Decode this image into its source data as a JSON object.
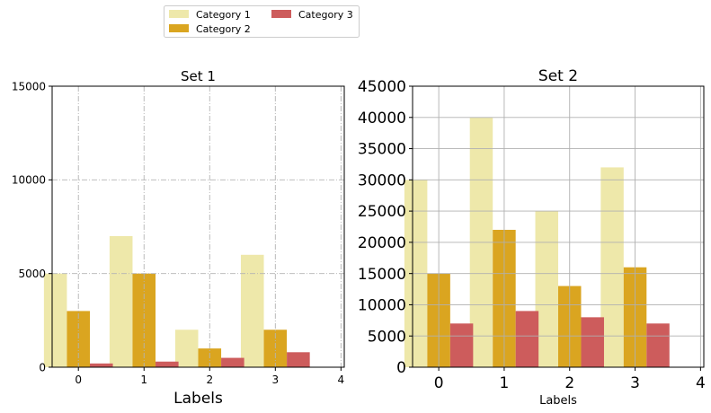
{
  "legend": {
    "placement": "top-center",
    "entries": [
      {
        "label": "Category 1",
        "color": "#EEE8AA"
      },
      {
        "label": "Category 2",
        "color": "#DAA520"
      },
      {
        "label": "Category 3",
        "color": "#CD5C5C"
      }
    ]
  },
  "chart_data": [
    {
      "type": "bar",
      "title": "Set 1",
      "xlabel": "Labels",
      "ylabel": "",
      "xlim": [
        -0.4,
        4.05
      ],
      "ylim": [
        0,
        15000
      ],
      "xticks": [
        "0",
        "1",
        "2",
        "3",
        "4"
      ],
      "yticks": [
        "0",
        "5000",
        "10000",
        "15000"
      ],
      "grid": "dash-dot, light gray",
      "categories": [
        0,
        1,
        2,
        3
      ],
      "bar_width": 0.35,
      "series": [
        {
          "name": "Category 1",
          "color": "#EEE8AA",
          "values": [
            5000,
            7000,
            2000,
            6000
          ]
        },
        {
          "name": "Category 2",
          "color": "#DAA520",
          "values": [
            3000,
            5000,
            1000,
            2000
          ]
        },
        {
          "name": "Category 3",
          "color": "#CD5C5C",
          "values": [
            200,
            300,
            500,
            800
          ]
        }
      ]
    },
    {
      "type": "bar",
      "title": "Set 2",
      "xlabel": "Labels",
      "ylabel": "",
      "xlim": [
        -0.4,
        4.05
      ],
      "ylim": [
        0,
        45000
      ],
      "xticks": [
        "0",
        "1",
        "2",
        "3",
        "4"
      ],
      "yticks": [
        "0",
        "5000",
        "10000",
        "15000",
        "20000",
        "25000",
        "30000",
        "35000",
        "40000",
        "45000"
      ],
      "grid": "solid, gray",
      "categories": [
        0,
        1,
        2,
        3
      ],
      "bar_width": 0.35,
      "series": [
        {
          "name": "Category 1",
          "color": "#EEE8AA",
          "values": [
            30000,
            40000,
            25000,
            32000
          ]
        },
        {
          "name": "Category 2",
          "color": "#DAA520",
          "values": [
            15000,
            22000,
            13000,
            16000
          ]
        },
        {
          "name": "Category 3",
          "color": "#CD5C5C",
          "values": [
            7000,
            9000,
            8000,
            7000
          ]
        }
      ]
    }
  ]
}
